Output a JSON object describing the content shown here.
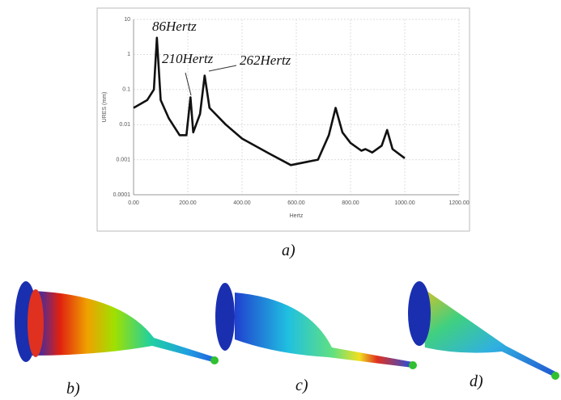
{
  "chart_data": {
    "type": "line",
    "x_label": "Hertz",
    "y_label": "URES (mm)",
    "x": [
      0,
      50,
      75,
      86,
      100,
      130,
      170,
      195,
      210,
      220,
      245,
      262,
      280,
      340,
      400,
      500,
      580,
      680,
      720,
      745,
      770,
      800,
      840,
      855,
      880,
      915,
      935,
      955,
      1000
    ],
    "values": [
      0.03,
      0.05,
      0.1,
      3,
      0.05,
      0.015,
      0.005,
      0.005,
      0.06,
      0.006,
      0.02,
      0.25,
      0.03,
      0.01,
      0.004,
      0.0015,
      0.0007,
      0.001,
      0.005,
      0.03,
      0.006,
      0.003,
      0.0018,
      0.002,
      0.0016,
      0.0025,
      0.007,
      0.002,
      0.0011
    ],
    "color": "#111111",
    "log_y": true,
    "grid": true,
    "xlim": [
      0,
      1200
    ],
    "ylim": [
      0.0001,
      10
    ],
    "xticks": [
      {
        "value": 0,
        "label": "0.00"
      },
      {
        "value": 200,
        "label": "200.00"
      },
      {
        "value": 400,
        "label": "400.00"
      },
      {
        "value": 600,
        "label": "600.00"
      },
      {
        "value": 800,
        "label": "800.00"
      },
      {
        "value": 1000,
        "label": "1000.00"
      },
      {
        "value": 1200,
        "label": "1200.00"
      }
    ],
    "yticks": [
      0.0001,
      0.001,
      0.01,
      0.1,
      1,
      10
    ],
    "annotations": [
      "86Hertz",
      "210Hertz",
      "262Hertz"
    ]
  },
  "panels": [
    "a)",
    "b)",
    "c)",
    "d)"
  ]
}
